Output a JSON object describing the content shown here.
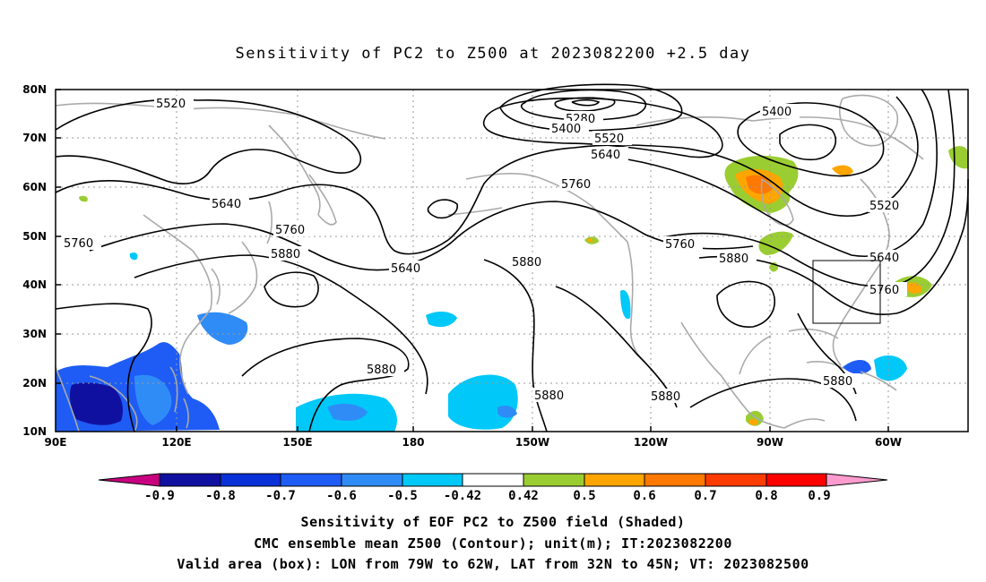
{
  "title": "Sensitivity of PC2 to Z500 at 2023082200 +2.5 day",
  "colors": {
    "contour": "#000000",
    "coast": "#aaaaaa",
    "grid": "#999999",
    "box": "#000000"
  },
  "map": {
    "lon_range": [
      "90E",
      "45W"
    ],
    "lat_range": [
      "10N",
      "80N"
    ],
    "lat_labels": [
      "80N",
      "70N",
      "60N",
      "50N",
      "40N",
      "30N",
      "20N",
      "10N"
    ],
    "lon_labels": [
      "90E",
      "120E",
      "150E",
      "180",
      "150W",
      "120W",
      "90W",
      "60W"
    ],
    "contour_labels": [
      "5520",
      "5280",
      "5400",
      "5520",
      "5640",
      "5400",
      "5640",
      "5760",
      "5760",
      "5880",
      "5640",
      "5760",
      "5880",
      "5760",
      "5880",
      "5520",
      "5640",
      "5760",
      "5880",
      "5880",
      "5880"
    ],
    "valid_box": {
      "lon": [
        "79W",
        "62W"
      ],
      "lat": [
        "32N",
        "45N"
      ]
    }
  },
  "colorbar": {
    "levels": [
      "-0.9",
      "-0.8",
      "-0.7",
      "-0.6",
      "-0.5",
      "-0.42",
      "0.42",
      "0.5",
      "0.6",
      "0.7",
      "0.8",
      "0.9"
    ],
    "colors": [
      "#c8007f",
      "#1010a0",
      "#0a30d8",
      "#1e5cf5",
      "#2f8cf6",
      "#00c8f8",
      "#ffffff",
      "#9acd32",
      "#ffa500",
      "#ff7800",
      "#ff3c00",
      "#ff0000",
      "#ff9ccf"
    ]
  },
  "captions": [
    "Sensitivity of EOF PC2 to Z500 field (Shaded)",
    "CMC ensemble mean Z500 (Contour); unit(m); IT:2023082200",
    "Valid area (box): LON from 79W to 62W, LAT from 32N to 45N; VT: 2023082500"
  ]
}
